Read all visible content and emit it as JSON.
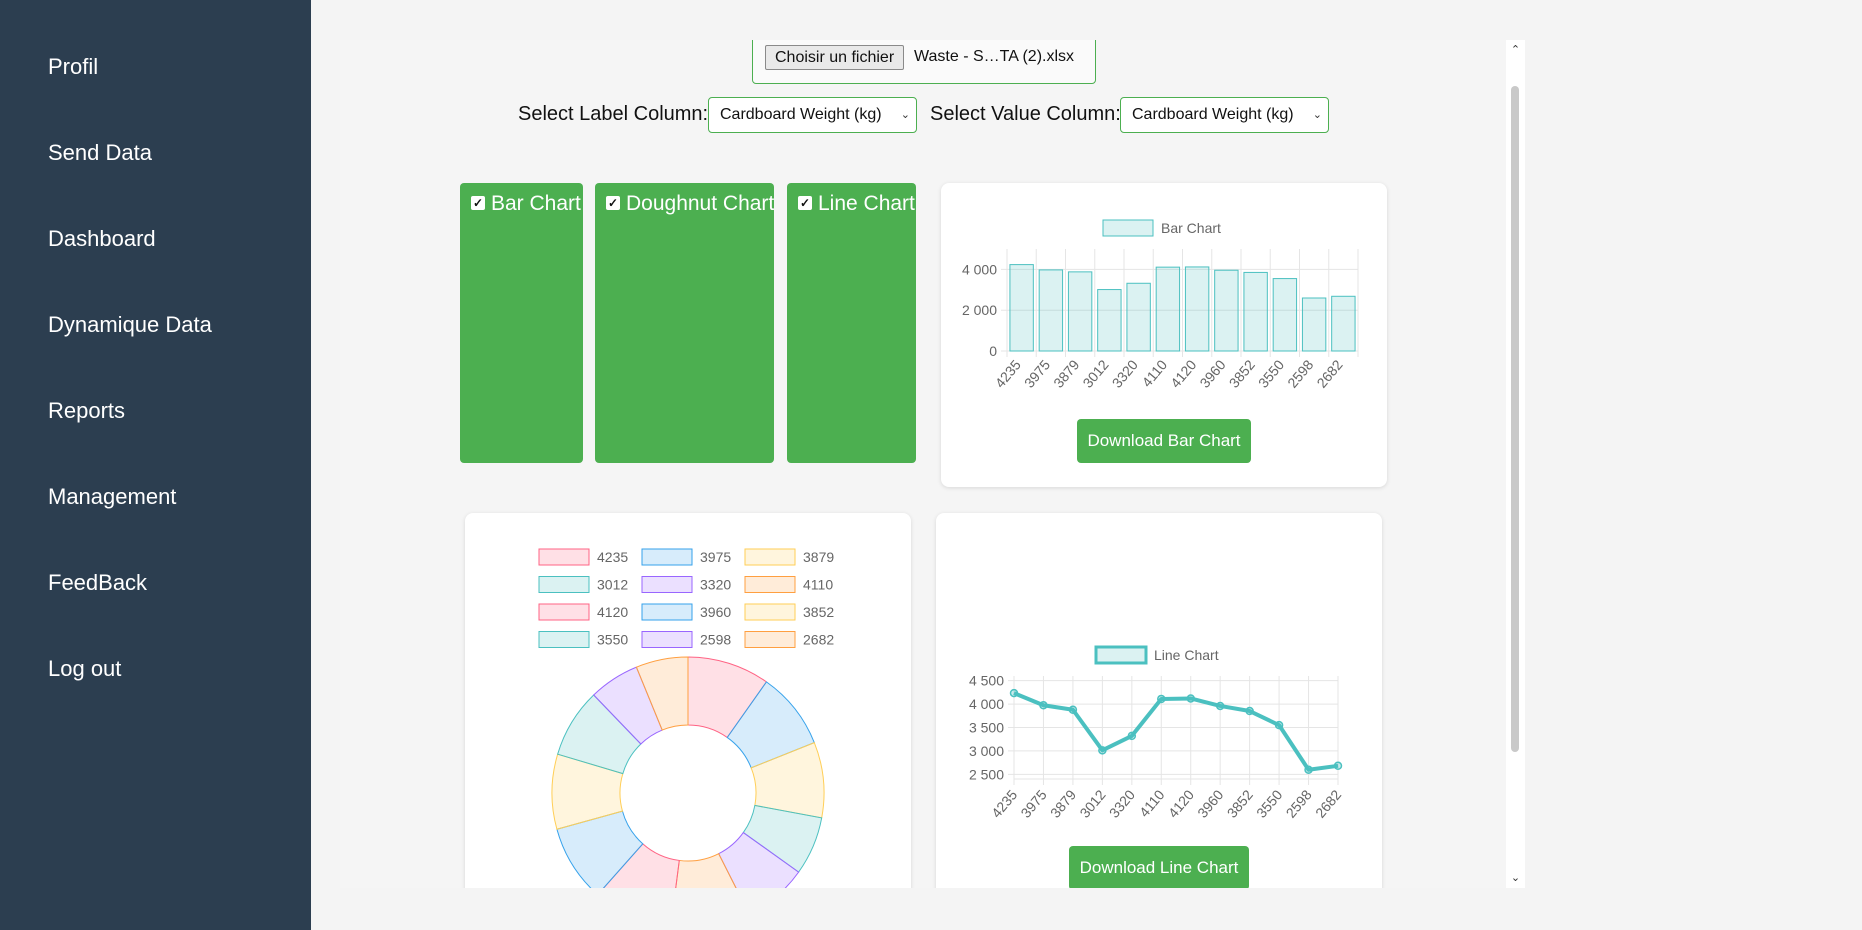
{
  "sidebar": {
    "items": [
      {
        "label": "Profil"
      },
      {
        "label": "Send Data"
      },
      {
        "label": "Dashboard"
      },
      {
        "label": "Dynamique Data"
      },
      {
        "label": "Reports"
      },
      {
        "label": "Management"
      },
      {
        "label": "FeedBack"
      },
      {
        "label": "Log out"
      }
    ]
  },
  "file_input": {
    "button_label": "Choisir un fichier",
    "file_name": "Waste - S…TA (2).xlsx"
  },
  "selectors": {
    "label_column_label": "Select Label Column:",
    "label_column_value": "Cardboard Weight (kg)",
    "value_column_label": "Select Value Column:",
    "value_column_value": "Cardboard Weight (kg)"
  },
  "toggles": [
    {
      "label": "Bar Chart",
      "checked": true
    },
    {
      "label": "Doughnut Chart",
      "checked": true
    },
    {
      "label": "Line Chart",
      "checked": true
    }
  ],
  "buttons": {
    "download_bar": "Download Bar Chart",
    "download_line": "Download Line Chart"
  },
  "colors": {
    "sidebar": "#2c3e50",
    "accent": "#4caf50",
    "teal": "#4bc0c0"
  },
  "chart_data": [
    {
      "type": "bar",
      "legend": "Bar Chart",
      "legend_position": "top",
      "categories": [
        "4235",
        "3975",
        "3879",
        "3012",
        "3320",
        "4110",
        "4120",
        "3960",
        "3852",
        "3550",
        "2598",
        "2682"
      ],
      "values": [
        4235,
        3975,
        3879,
        3012,
        3320,
        4110,
        4120,
        3960,
        3852,
        3550,
        2598,
        2682
      ],
      "ylim": [
        0,
        5000
      ],
      "yticks": [
        0,
        2000,
        4000
      ],
      "ytick_labels": [
        "0",
        "2 000",
        "4 000"
      ],
      "grid": true
    },
    {
      "type": "pie",
      "variant": "doughnut",
      "legend_position": "top",
      "labels": [
        "4235",
        "3975",
        "3879",
        "3012",
        "3320",
        "4110",
        "4120",
        "3960",
        "3852",
        "3550",
        "2598",
        "2682"
      ],
      "values": [
        4235,
        3975,
        3879,
        3012,
        3320,
        4110,
        4120,
        3960,
        3852,
        3550,
        2598,
        2682
      ],
      "colors": [
        "#ff6384",
        "#36a2eb",
        "#ffce56",
        "#4bc0c0",
        "#9966ff",
        "#ff9f40",
        "#ff6384",
        "#36a2eb",
        "#ffce56",
        "#4bc0c0",
        "#9966ff",
        "#ff9f40"
      ]
    },
    {
      "type": "line",
      "legend": "Line Chart",
      "legend_position": "top",
      "categories": [
        "4235",
        "3975",
        "3879",
        "3012",
        "3320",
        "4110",
        "4120",
        "3960",
        "3852",
        "3550",
        "2598",
        "2682"
      ],
      "values": [
        4235,
        3975,
        3879,
        3012,
        3320,
        4110,
        4120,
        3960,
        3852,
        3550,
        2598,
        2682
      ],
      "ylim": [
        2400,
        4600
      ],
      "yticks": [
        2500,
        3000,
        3500,
        4000,
        4500
      ],
      "ytick_labels": [
        "2 500",
        "3 000",
        "3 500",
        "4 000",
        "4 500"
      ],
      "grid": true
    }
  ]
}
